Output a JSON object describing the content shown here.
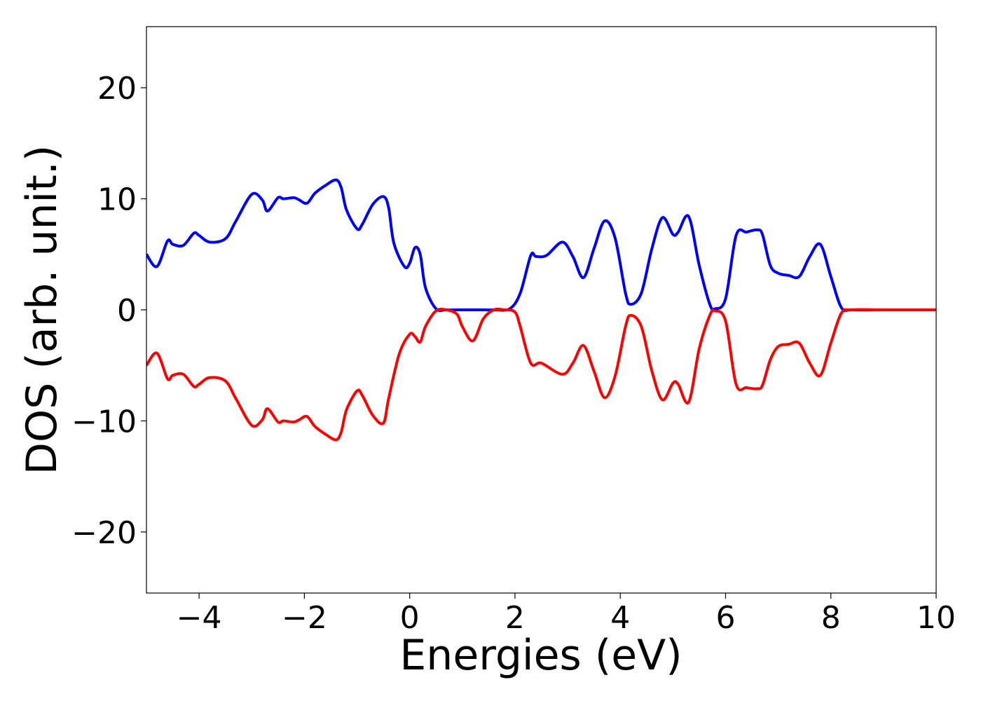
{
  "chart_data": {
    "type": "line",
    "title": "",
    "xlabel": "Energies (eV)",
    "ylabel": "DOS (arb. unit.)",
    "xlim": [
      -5,
      10
    ],
    "ylim": [
      -25.5,
      25.5
    ],
    "xticks": [
      -4,
      -2,
      0,
      2,
      4,
      6,
      8,
      10
    ],
    "yticks": [
      -20,
      -10,
      0,
      10,
      20
    ],
    "xtick_labels": [
      "−4",
      "−2",
      "0",
      "2",
      "4",
      "6",
      "8",
      "10"
    ],
    "ytick_labels": [
      "−20",
      "−10",
      "0",
      "10",
      "20"
    ],
    "grid": false,
    "legend": false,
    "series": [
      {
        "color": "#0000ff",
        "x": [
          -5.0,
          -4.8,
          -4.6,
          -4.5,
          -4.3,
          -4.1,
          -4.0,
          -3.8,
          -3.5,
          -3.3,
          -3.0,
          -2.8,
          -2.7,
          -2.5,
          -2.4,
          -2.2,
          -2.1,
          -1.95,
          -1.8,
          -1.6,
          -1.4,
          -1.3,
          -1.2,
          -1.0,
          -0.9,
          -0.7,
          -0.5,
          -0.4,
          -0.3,
          -0.1,
          0.0,
          0.1,
          0.2,
          0.3,
          0.5,
          0.7,
          1.0,
          1.3,
          1.6,
          1.9,
          2.1,
          2.3,
          2.4,
          2.6,
          2.9,
          3.1,
          3.3,
          3.5,
          3.7,
          3.9,
          4.1,
          4.2,
          4.4,
          4.6,
          4.8,
          5.0,
          5.1,
          5.3,
          5.5,
          5.7,
          5.8,
          6.0,
          6.2,
          6.4,
          6.6,
          6.7,
          6.85,
          7.0,
          7.2,
          7.4,
          7.6,
          7.8,
          8.0,
          8.2,
          8.4,
          9.0,
          9.5,
          10.0
        ],
        "y": [
          5.0,
          3.9,
          6.2,
          5.9,
          5.8,
          6.9,
          6.7,
          6.1,
          6.4,
          8.0,
          10.4,
          9.9,
          8.9,
          10.1,
          10.0,
          10.1,
          9.9,
          9.6,
          10.5,
          11.2,
          11.7,
          11.0,
          9.0,
          7.3,
          7.7,
          9.5,
          10.2,
          9.2,
          6.0,
          3.9,
          4.2,
          5.6,
          5.0,
          2.0,
          0.1,
          0.0,
          0.0,
          0.0,
          0.0,
          0.1,
          1.5,
          4.9,
          4.8,
          4.9,
          6.1,
          4.8,
          2.9,
          5.5,
          8.0,
          6.5,
          1.5,
          0.5,
          1.5,
          5.5,
          8.3,
          6.8,
          7.0,
          8.4,
          4.0,
          0.5,
          0.1,
          1.0,
          6.7,
          7.0,
          7.2,
          6.8,
          4.0,
          3.3,
          3.1,
          3.0,
          4.8,
          5.9,
          3.0,
          0.2,
          0.0,
          0.0,
          0.0,
          0.0
        ]
      },
      {
        "color": "#ff0000",
        "x": [
          -5.0,
          -4.8,
          -4.6,
          -4.5,
          -4.3,
          -4.1,
          -4.0,
          -3.8,
          -3.5,
          -3.3,
          -3.0,
          -2.8,
          -2.7,
          -2.5,
          -2.4,
          -2.2,
          -2.1,
          -1.95,
          -1.8,
          -1.6,
          -1.4,
          -1.3,
          -1.2,
          -1.0,
          -0.9,
          -0.7,
          -0.5,
          -0.4,
          -0.2,
          0.0,
          0.1,
          0.2,
          0.3,
          0.5,
          0.7,
          0.9,
          1.0,
          1.2,
          1.4,
          1.6,
          1.8,
          2.0,
          2.1,
          2.3,
          2.5,
          2.9,
          3.1,
          3.3,
          3.5,
          3.7,
          3.9,
          4.1,
          4.2,
          4.4,
          4.6,
          4.8,
          5.0,
          5.1,
          5.3,
          5.5,
          5.7,
          5.8,
          6.0,
          6.2,
          6.4,
          6.6,
          6.7,
          6.85,
          7.0,
          7.2,
          7.4,
          7.6,
          7.8,
          8.0,
          8.2,
          8.4,
          9.0,
          9.5,
          10.0
        ],
        "y": [
          -5.0,
          -3.9,
          -6.2,
          -5.9,
          -5.8,
          -6.9,
          -6.7,
          -6.1,
          -6.4,
          -8.0,
          -10.4,
          -9.9,
          -8.9,
          -10.1,
          -10.0,
          -10.1,
          -9.9,
          -9.6,
          -10.5,
          -11.2,
          -11.7,
          -11.0,
          -9.0,
          -7.3,
          -7.7,
          -9.5,
          -10.2,
          -8.0,
          -4.0,
          -2.2,
          -2.4,
          -2.9,
          -1.5,
          -0.1,
          0.0,
          -0.4,
          -1.5,
          -2.8,
          -0.8,
          0.0,
          0.0,
          -0.2,
          -1.5,
          -4.8,
          -4.8,
          -5.8,
          -4.8,
          -3.2,
          -5.5,
          -7.9,
          -6.0,
          -1.5,
          -0.5,
          -1.5,
          -5.5,
          -8.1,
          -6.6,
          -6.7,
          -8.3,
          -3.5,
          -0.5,
          -0.1,
          -1.0,
          -6.7,
          -7.0,
          -7.1,
          -6.8,
          -4.5,
          -3.3,
          -3.1,
          -3.0,
          -4.8,
          -5.9,
          -3.0,
          -0.3,
          0.0,
          0.0,
          0.0,
          0.0
        ]
      }
    ]
  }
}
